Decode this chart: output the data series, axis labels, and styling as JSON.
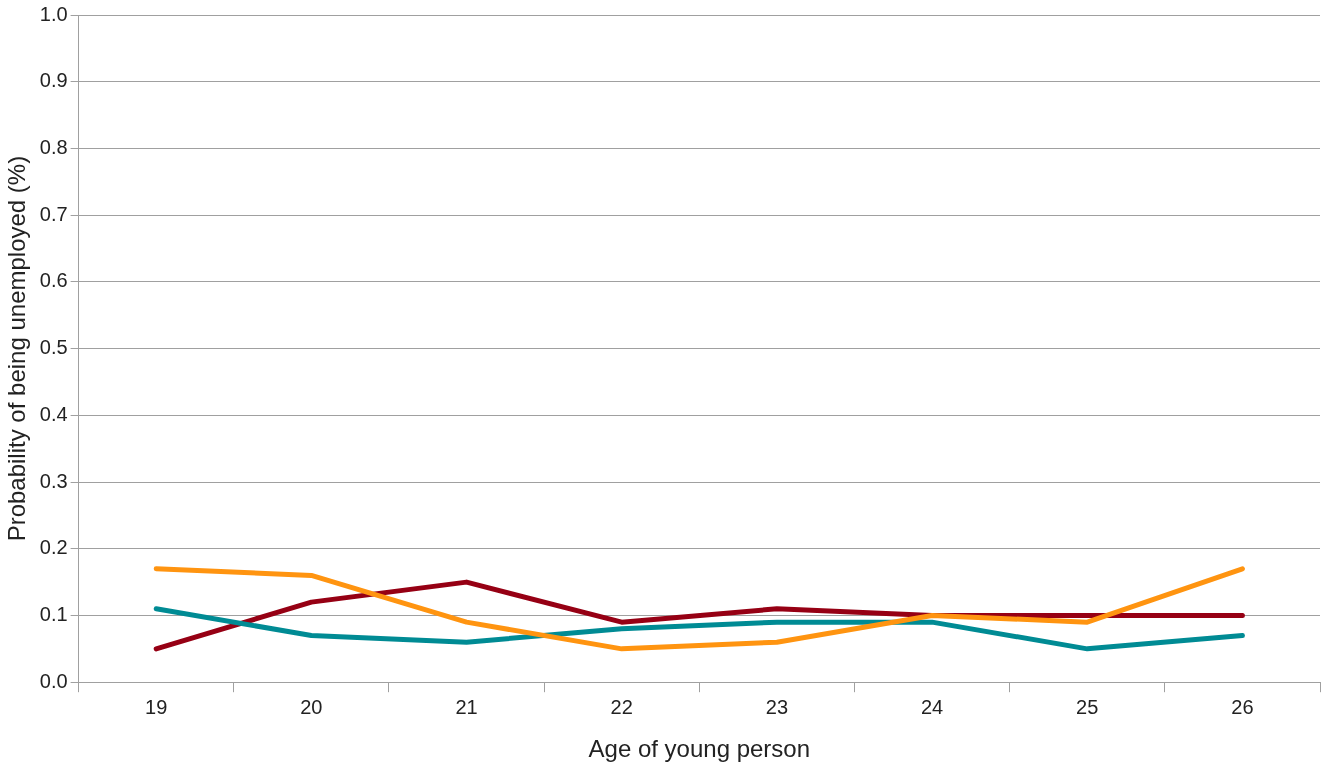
{
  "chart_data": {
    "type": "line",
    "xlabel": "Age of young person",
    "ylabel": "Probability of being unemployed (%)",
    "categories": [
      "19",
      "20",
      "21",
      "22",
      "23",
      "24",
      "25",
      "26"
    ],
    "series": [
      {
        "color": "#ff9410",
        "values": [
          0.17,
          0.16,
          0.09,
          0.05,
          0.06,
          0.1,
          0.09,
          0.17
        ]
      },
      {
        "color": "#008b94",
        "values": [
          0.11,
          0.07,
          0.06,
          0.08,
          0.09,
          0.09,
          0.05,
          0.07
        ]
      },
      {
        "color": "#960014",
        "values": [
          0.05,
          0.12,
          0.15,
          0.09,
          0.11,
          0.1,
          0.1,
          0.1
        ]
      }
    ],
    "ylim": [
      0,
      1
    ],
    "yticks": [
      {
        "value": 0,
        "label": "0.0"
      },
      {
        "value": 0.1,
        "label": "0.1"
      },
      {
        "value": 0.2,
        "label": "0.2"
      },
      {
        "value": 0.3,
        "label": "0.3"
      },
      {
        "value": 0.4,
        "label": "0.4"
      },
      {
        "value": 0.5,
        "label": "0.5"
      },
      {
        "value": 0.6,
        "label": "0.6"
      },
      {
        "value": 0.7,
        "label": "0.7"
      },
      {
        "value": 0.8,
        "label": "0.8"
      },
      {
        "value": 0.9,
        "label": "0.9"
      },
      {
        "value": 1,
        "label": "1.0"
      }
    ],
    "grid": "y",
    "legend": false,
    "marker": "none",
    "line_style": "solid"
  }
}
